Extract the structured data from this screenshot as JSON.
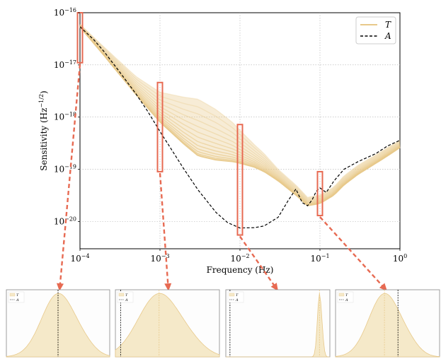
{
  "chart_data": {
    "type": "line",
    "xlabel": "Frequency (Hz)",
    "ylabel": "Sensitivity (Hz",
    "ylabel_exp": "−1/2",
    "ylabel_close": ")",
    "xscale": "log",
    "yscale": "log",
    "xlim": [
      0.0001,
      1
    ],
    "ylim": [
      3e-21,
      1e-16
    ],
    "grid": true,
    "legend_position": "top-right",
    "x_ticks": [
      {
        "value": 0.0001,
        "base": "10",
        "exp": "−4"
      },
      {
        "value": 0.001,
        "base": "10",
        "exp": "−3"
      },
      {
        "value": 0.01,
        "base": "10",
        "exp": "−2"
      },
      {
        "value": 0.1,
        "base": "10",
        "exp": "−1"
      },
      {
        "value": 1,
        "base": "10",
        "exp": "0"
      }
    ],
    "y_ticks": [
      {
        "value": 1e-16,
        "base": "10",
        "exp": "−16"
      },
      {
        "value": 1e-17,
        "base": "10",
        "exp": "−17"
      },
      {
        "value": 1e-18,
        "base": "10",
        "exp": "−18"
      },
      {
        "value": 1e-19,
        "base": "10",
        "exp": "−19"
      },
      {
        "value": 1e-20,
        "base": "10",
        "exp": "−20"
      }
    ],
    "series": [
      {
        "name": "T",
        "style": "solid band of many curves",
        "color": "#e8c98a",
        "x": [
          0.0001,
          0.0002,
          0.0005,
          0.001,
          0.002,
          0.003,
          0.005,
          0.008,
          0.01,
          0.015,
          0.02,
          0.03,
          0.05,
          0.07,
          0.1,
          0.15,
          0.2,
          0.3,
          0.5,
          0.7,
          1.0
        ],
        "upper": [
          6e-17,
          2.2e-17,
          6e-18,
          3e-18,
          2.4e-18,
          2.2e-18,
          1.4e-18,
          8e-19,
          5.6e-19,
          3e-19,
          2e-19,
          1e-19,
          5e-20,
          2.9e-20,
          3.2e-20,
          4.6e-20,
          7.5e-20,
          1.2e-19,
          1.9e-19,
          2.6e-19,
          3.6e-19
        ],
        "lower": [
          5.3e-17,
          1.5e-17,
          2.7e-18,
          8e-19,
          3e-19,
          1.8e-19,
          1.5e-19,
          1.4e-19,
          1.3e-19,
          1.1e-19,
          9e-20,
          6e-20,
          3.2e-20,
          2e-20,
          2.2e-20,
          3.2e-20,
          5e-20,
          8e-20,
          1.3e-19,
          1.8e-19,
          2.6e-19
        ]
      },
      {
        "name": "A",
        "style": "dashed",
        "color": "#000000",
        "x": [
          0.0001,
          0.00015,
          0.0002,
          0.0003,
          0.0005,
          0.0007,
          0.001,
          0.0015,
          0.002,
          0.003,
          0.005,
          0.007,
          0.01,
          0.015,
          0.02,
          0.03,
          0.04,
          0.05,
          0.06,
          0.07,
          0.08,
          0.09,
          0.1,
          0.12,
          0.15,
          0.2,
          0.3,
          0.5,
          0.7,
          1.0
        ],
        "y": [
          5.4e-17,
          3e-17,
          1.8e-17,
          8e-18,
          2.8e-18,
          1.3e-18,
          5.3e-19,
          2e-19,
          1e-19,
          4e-20,
          1.5e-20,
          9.5e-21,
          7.5e-21,
          7.6e-21,
          8.2e-21,
          1.2e-20,
          2.5e-20,
          4.2e-20,
          2.3e-20,
          2e-20,
          2.6e-20,
          3.8e-20,
          4.4e-20,
          3.6e-20,
          6e-20,
          1e-19,
          1.4e-19,
          2e-19,
          2.8e-19,
          3.6e-19
        ]
      }
    ],
    "highlight_boxes": [
      {
        "x": 0.0001,
        "y_low": 1.1e-17,
        "y_high": 1e-16
      },
      {
        "x": 0.001,
        "y_low": 9e-20,
        "y_high": 4.6e-18
      },
      {
        "x": 0.01,
        "y_low": 5.5e-21,
        "y_high": 7.2e-19
      },
      {
        "x": 0.1,
        "y_low": 1.3e-20,
        "y_high": 9e-20
      }
    ],
    "insets": [
      {
        "peak_x": 0.5,
        "width": 0.16,
        "a_line_x": 0.5
      },
      {
        "peak_x": 0.42,
        "width": 0.2,
        "a_line_x": 0.05
      },
      {
        "peak_x": 0.9,
        "width": 0.02,
        "a_line_x": 0.04
      },
      {
        "peak_x": 0.47,
        "width": 0.15,
        "a_line_x": 0.6
      }
    ]
  },
  "legend": [
    {
      "label": "T",
      "style": "solid",
      "color": "#e8c98a"
    },
    {
      "label": "A",
      "style": "dashed",
      "color": "#000000"
    }
  ],
  "colors": {
    "band": "#e8c98a",
    "highlight": "#e76a52",
    "grid": "#b0b0b0",
    "inset_fill": "#f5e9c9",
    "inset_bg": "#fdfdfd"
  }
}
